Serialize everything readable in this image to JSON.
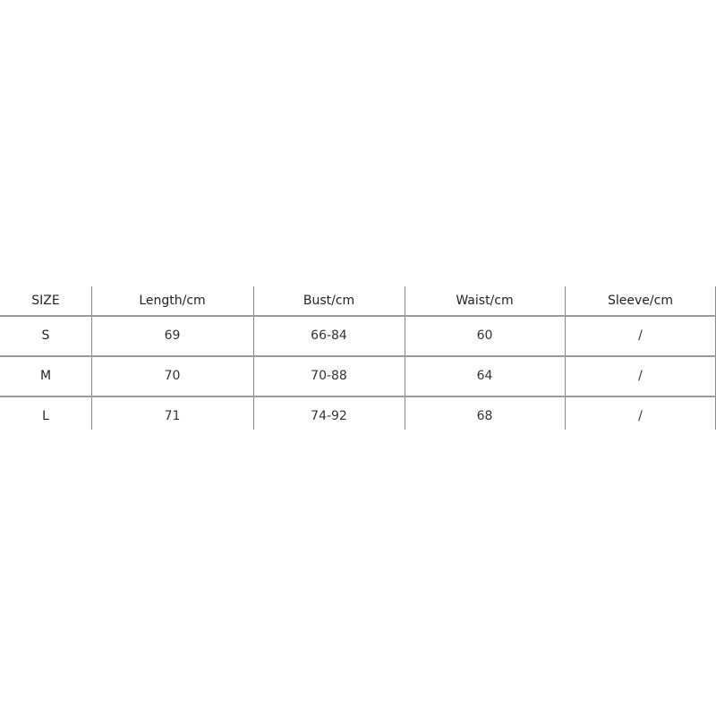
{
  "table": {
    "headers": [
      "SIZE",
      "Length/cm",
      "Bust/cm",
      "Waist/cm",
      "Sleeve/cm"
    ],
    "rows": [
      [
        "S",
        "69",
        "66-84",
        "60",
        "/"
      ],
      [
        "M",
        "70",
        "70-88",
        "64",
        "/"
      ],
      [
        "L",
        "71",
        "74-92",
        "68",
        "/"
      ]
    ]
  }
}
